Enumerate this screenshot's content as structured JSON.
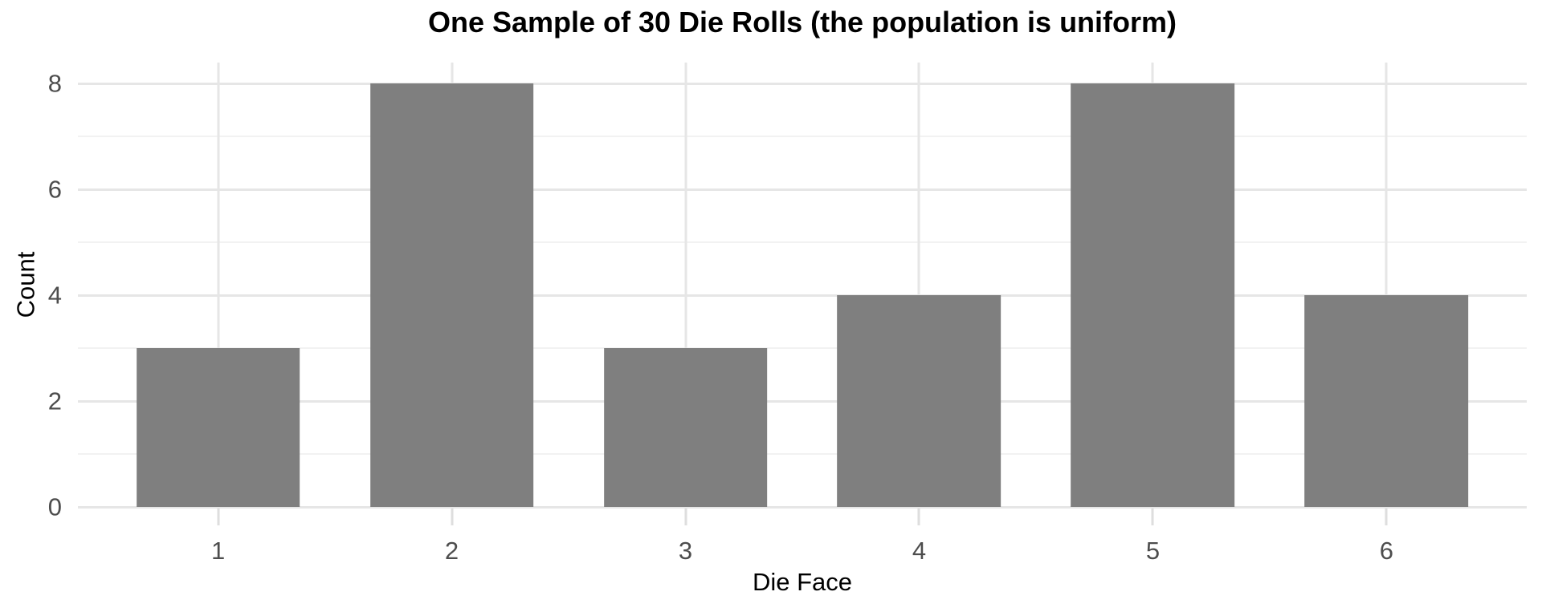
{
  "chart_data": {
    "type": "bar",
    "title": "One Sample of 30 Die Rolls (the population is uniform)",
    "xlabel": "Die Face",
    "ylabel": "Count",
    "categories": [
      "1",
      "2",
      "3",
      "4",
      "5",
      "6"
    ],
    "values": [
      3,
      8,
      3,
      4,
      8,
      4
    ],
    "ylim": [
      0,
      8.4
    ],
    "yticks": [
      0,
      2,
      4,
      6,
      8
    ],
    "yticks_minor": [
      1,
      3,
      5,
      7
    ],
    "grid": "on",
    "legend": "none",
    "colors": {
      "background": "#ffffff",
      "bar": "#7f7f7f",
      "grid_major": "#e6e6e6",
      "grid_minor": "#f2f2f2",
      "tick_mark": "#dedede",
      "tick_label": "#4d4d4d",
      "axis_title": "#000000",
      "title": "#000000"
    }
  }
}
